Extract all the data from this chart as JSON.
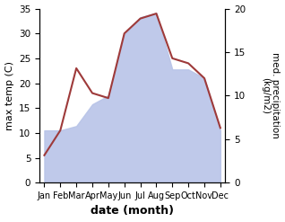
{
  "months": [
    "Jan",
    "Feb",
    "Mar",
    "Apr",
    "May",
    "Jun",
    "Jul",
    "Aug",
    "Sep",
    "Oct",
    "Nov",
    "Dec"
  ],
  "temperature": [
    5.5,
    10.5,
    23.0,
    18.0,
    17.0,
    30.0,
    33.0,
    34.0,
    25.0,
    24.0,
    21.0,
    11.0
  ],
  "precipitation": [
    6.0,
    6.0,
    6.5,
    9.0,
    10.0,
    17.0,
    19.0,
    19.5,
    13.0,
    13.0,
    12.0,
    6.0
  ],
  "temp_color": "#9e3a3a",
  "precip_color": "#b8c4e8",
  "temp_ylim": [
    0,
    35
  ],
  "precip_ylim": [
    0,
    20
  ],
  "xlabel": "date (month)",
  "ylabel_left": "max temp (C)",
  "ylabel_right": "med. precipitation\n(kg/m2)",
  "label_fontsize": 8,
  "tick_fontsize": 7.5,
  "xlabel_fontsize": 9
}
